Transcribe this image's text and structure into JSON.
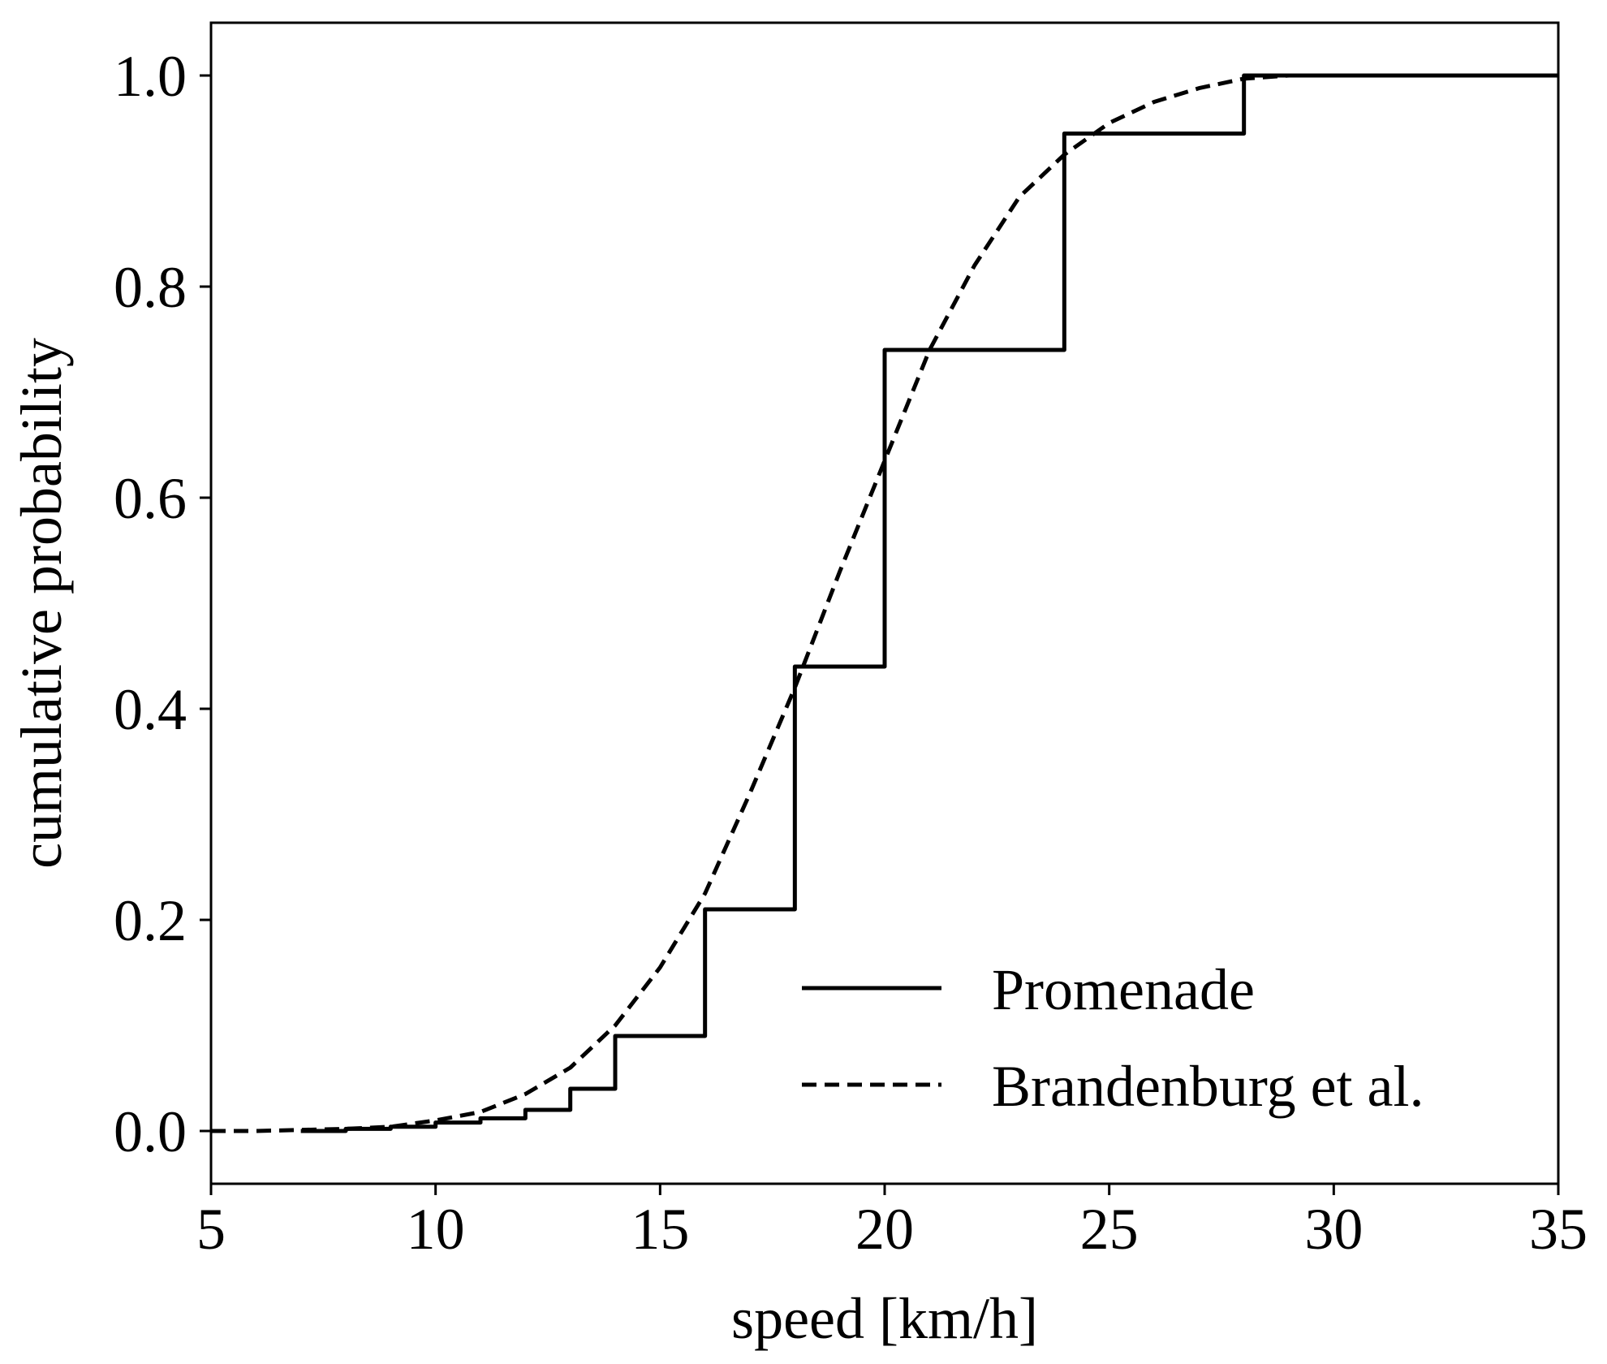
{
  "chart_data": {
    "type": "line",
    "xlabel": "speed [km/h]",
    "ylabel": "cumulative probability",
    "xlim": [
      5,
      35
    ],
    "ylim": [
      -0.05,
      1.05
    ],
    "xticks": [
      5,
      10,
      15,
      20,
      25,
      30,
      35
    ],
    "xtick_labels": [
      "5",
      "10",
      "15",
      "20",
      "25",
      "30",
      "35"
    ],
    "yticks": [
      0.0,
      0.2,
      0.4,
      0.6,
      0.8,
      1.0
    ],
    "ytick_labels": [
      "0.0",
      "0.2",
      "0.4",
      "0.6",
      "0.8",
      "1.0"
    ],
    "grid": false,
    "legend_position": "lower-right",
    "series": [
      {
        "name": "Promenade",
        "style": "solid-step",
        "color": "#000000",
        "x": [
          7,
          8,
          9,
          10,
          11,
          12,
          13,
          14,
          16,
          18,
          20,
          24,
          28,
          35
        ],
        "y": [
          0.0,
          0.002,
          0.004,
          0.008,
          0.012,
          0.02,
          0.04,
          0.09,
          0.21,
          0.44,
          0.74,
          0.945,
          1.0,
          1.0
        ]
      },
      {
        "name": "Brandenburg et al.",
        "style": "dashed",
        "color": "#000000",
        "x": [
          5,
          6,
          7,
          8,
          9,
          10,
          11,
          12,
          13,
          14,
          15,
          16,
          17,
          18,
          19,
          20,
          21,
          22,
          23,
          24,
          25,
          26,
          27,
          28,
          29,
          30,
          31,
          32
        ],
        "y": [
          0.0,
          0.0,
          0.001,
          0.002,
          0.004,
          0.01,
          0.018,
          0.035,
          0.06,
          0.1,
          0.155,
          0.225,
          0.32,
          0.42,
          0.53,
          0.635,
          0.74,
          0.82,
          0.885,
          0.925,
          0.955,
          0.975,
          0.988,
          0.997,
          1.0,
          1.0,
          1.0,
          1.0
        ]
      }
    ]
  }
}
